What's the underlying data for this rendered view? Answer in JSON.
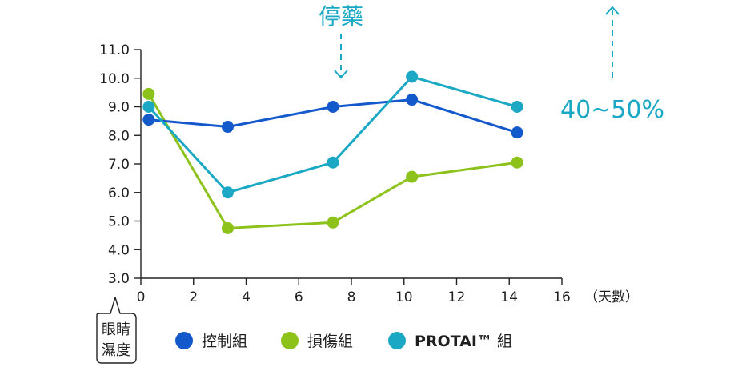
{
  "chart_data": {
    "type": "line",
    "x_unit": "（天數）",
    "y_label_lines": [
      "眼睛",
      "濕度"
    ],
    "x_ticks": [
      0,
      2,
      4,
      6,
      8,
      10,
      12,
      14,
      16
    ],
    "y_ticks": [
      "3.0",
      "4.0",
      "5.0",
      "6.0",
      "7.0",
      "8.0",
      "9.0",
      "10.0",
      "11.0"
    ],
    "xlim": [
      0,
      16
    ],
    "ylim": [
      3.0,
      11.0
    ],
    "grid": false,
    "legend_position": "bottom",
    "series": [
      {
        "name": "控制組",
        "color": "#1459cc",
        "x": [
          0.3,
          3.3,
          7.3,
          10.3,
          14.3
        ],
        "y": [
          8.55,
          8.3,
          9.0,
          9.25,
          8.1
        ]
      },
      {
        "name": "損傷組",
        "color": "#8cc21a",
        "x": [
          0.3,
          3.3,
          7.3,
          10.3,
          14.3
        ],
        "y": [
          9.45,
          4.75,
          4.95,
          6.55,
          7.05
        ]
      },
      {
        "name": "PROTAI™ 組",
        "name_bold": "PROTAI™",
        "name_rest": " 組",
        "color": "#1aa8c4",
        "x": [
          0.3,
          3.3,
          7.3,
          10.3,
          14.3
        ],
        "y": [
          9.0,
          6.0,
          7.05,
          10.05,
          9.0
        ]
      }
    ],
    "annotations": {
      "stop_label": "停藥",
      "stop_color": "#1aa8c4",
      "increase_label": "40~50%"
    }
  }
}
